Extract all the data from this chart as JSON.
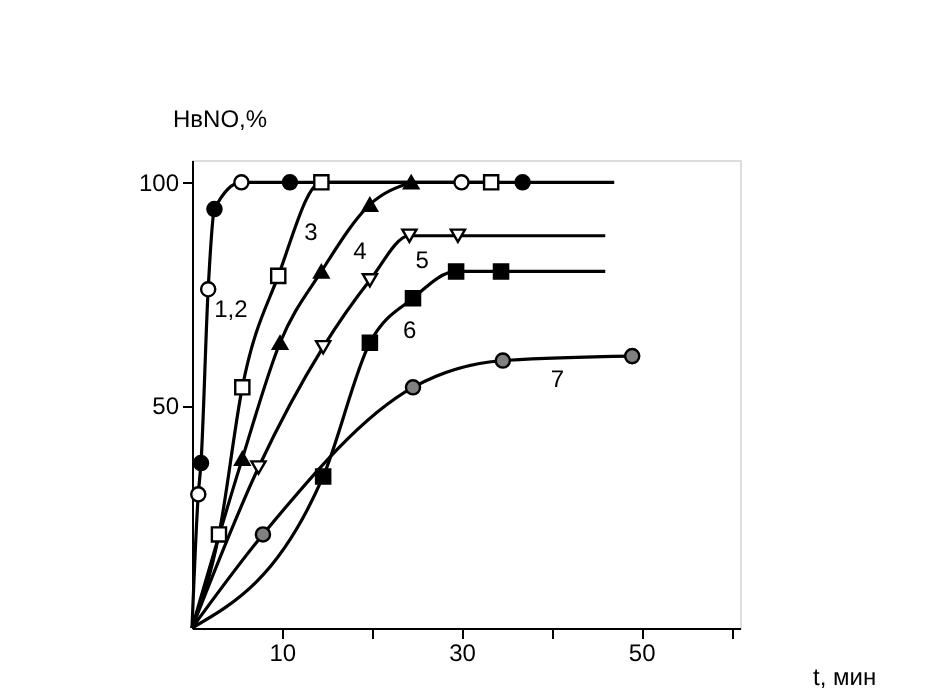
{
  "chart_data": {
    "type": "line",
    "xlabel": "t, мин",
    "ylabel": "НвNO,%",
    "xlim": [
      0,
      61
    ],
    "ylim": [
      0,
      105
    ],
    "xticks": [
      {
        "value": 10,
        "label": "10"
      },
      {
        "value": 20,
        "label": null
      },
      {
        "value": 30,
        "label": "30"
      },
      {
        "value": 40,
        "label": null
      },
      {
        "value": 50,
        "label": "50"
      },
      {
        "value": 60,
        "label": null
      }
    ],
    "yticks": [
      50,
      100
    ],
    "grid": false,
    "line_style": "solid",
    "series": [
      {
        "type": "line",
        "name": "1,2",
        "marker": "none",
        "color": "#000000",
        "x": [
          0,
          0.7,
          1,
          1.8,
          2.5,
          5.5,
          10.9,
          30,
          36.8,
          47
        ],
        "values": [
          0,
          30,
          37,
          76,
          94,
          100,
          100,
          100,
          100,
          100
        ]
      },
      {
        "type": "line",
        "name": "3",
        "marker": "none",
        "color": "#000000",
        "x": [
          0,
          3,
          5.6,
          9.6,
          14.4,
          33.3
        ],
        "values": [
          0,
          21,
          54,
          79,
          100,
          100
        ]
      },
      {
        "type": "line",
        "name": "4",
        "marker": "none",
        "color": "#000000",
        "x": [
          0,
          5.6,
          9.8,
          14.4,
          19.8,
          24.4
        ],
        "values": [
          0,
          38,
          64,
          80,
          95,
          100
        ]
      },
      {
        "type": "line",
        "name": "5",
        "marker": "none",
        "color": "#000000",
        "x": [
          0,
          7.4,
          14.6,
          19.8,
          24.2,
          29.6,
          46
        ],
        "values": [
          0,
          36,
          63,
          78,
          88,
          88,
          88
        ]
      },
      {
        "type": "line",
        "name": "6",
        "marker": "none",
        "color": "#000000",
        "x": [
          0,
          14.6,
          19.8,
          24.6,
          29.4,
          34.4,
          46
        ],
        "values": [
          0,
          34,
          64,
          74,
          80,
          80,
          80
        ]
      },
      {
        "type": "line",
        "name": "7",
        "marker": "none",
        "color": "#000000",
        "x": [
          0,
          7.9,
          24.6,
          34.6,
          49
        ],
        "values": [
          0,
          21,
          54,
          60,
          61
        ]
      },
      {
        "type": "scatter",
        "marker": "circle",
        "color": "#ffffff",
        "x": [
          0.7,
          1.8,
          5.5,
          30
        ],
        "values": [
          30,
          76,
          100,
          100
        ]
      },
      {
        "type": "scatter",
        "marker": "circle",
        "color": "#000000",
        "x": [
          1,
          2.5,
          10.9,
          36.8
        ],
        "values": [
          37,
          94,
          100,
          100
        ]
      },
      {
        "type": "scatter",
        "marker": "square",
        "color": "#ffffff",
        "x": [
          3,
          5.6,
          9.6,
          14.4,
          33.3
        ],
        "values": [
          21,
          54,
          79,
          100,
          100
        ]
      },
      {
        "type": "scatter",
        "marker": "triangle",
        "color": "#000000",
        "x": [
          5.6,
          9.8,
          14.4,
          19.8,
          24.4
        ],
        "values": [
          38,
          64,
          80,
          95,
          100
        ]
      },
      {
        "type": "scatter",
        "marker": "triangle-down",
        "color": "#ffffff",
        "x": [
          7.4,
          14.6,
          19.8,
          24.2,
          29.6
        ],
        "values": [
          36,
          63,
          78,
          88,
          88
        ]
      },
      {
        "type": "scatter",
        "marker": "square",
        "color": "#000000",
        "x": [
          14.6,
          19.8,
          24.6,
          29.4,
          34.4
        ],
        "values": [
          34,
          64,
          74,
          80,
          80
        ]
      },
      {
        "type": "scatter",
        "marker": "circle",
        "color": "#808080",
        "x": [
          7.9,
          24.6,
          34.6,
          49
        ],
        "values": [
          21,
          54,
          60,
          61
        ]
      }
    ]
  }
}
